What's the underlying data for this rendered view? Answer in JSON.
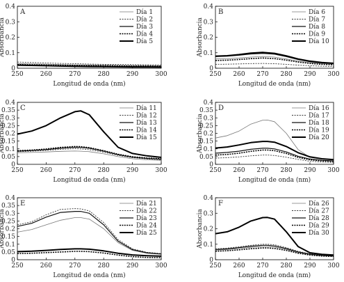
{
  "chart_data": [
    {
      "type": "line",
      "panel_label": "A",
      "xlabel": "Longitud de onda (nm)",
      "ylabel": "Absorbancia",
      "xlim": [
        250,
        300
      ],
      "ylim": [
        0,
        0.4
      ],
      "xticks": [
        250,
        260,
        270,
        280,
        290,
        300
      ],
      "yticks": [
        0,
        0.1,
        0.2,
        0.3,
        0.4
      ],
      "legend_position": "top-right",
      "grid": false,
      "x": [
        250,
        255,
        260,
        265,
        270,
        275,
        280,
        285,
        290,
        295,
        300
      ],
      "series": [
        {
          "name": "Día 1",
          "style": "thin",
          "values": [
            0.03,
            0.028,
            0.026,
            0.024,
            0.022,
            0.021,
            0.02,
            0.019,
            0.018,
            0.017,
            0.016
          ]
        },
        {
          "name": "Día 2",
          "style": "dotted",
          "values": [
            0.04,
            0.037,
            0.034,
            0.031,
            0.029,
            0.027,
            0.025,
            0.024,
            0.023,
            0.022,
            0.021
          ]
        },
        {
          "name": "Día 3",
          "style": "medium",
          "values": [
            0.018,
            0.017,
            0.016,
            0.015,
            0.014,
            0.013,
            0.012,
            0.011,
            0.011,
            0.01,
            0.01
          ]
        },
        {
          "name": "Día 4",
          "style": "dotted-thick",
          "values": [
            0.024,
            0.022,
            0.02,
            0.019,
            0.018,
            0.017,
            0.016,
            0.015,
            0.014,
            0.014,
            0.013
          ]
        },
        {
          "name": "Día 5",
          "style": "thick",
          "values": [
            0.02,
            0.018,
            0.016,
            0.014,
            0.012,
            0.011,
            0.01,
            0.009,
            0.008,
            0.008,
            0.007
          ]
        }
      ]
    },
    {
      "type": "line",
      "panel_label": "B",
      "xlabel": "Longitud de onda (nm)",
      "ylabel": "Absorbancia",
      "xlim": [
        250,
        300
      ],
      "ylim": [
        0,
        0.4
      ],
      "xticks": [
        250,
        260,
        270,
        280,
        290,
        300
      ],
      "yticks": [
        0,
        0.1,
        0.2,
        0.3,
        0.4
      ],
      "legend_position": "top-right",
      "grid": false,
      "x": [
        250,
        255,
        260,
        265,
        270,
        275,
        280,
        285,
        290,
        295,
        300
      ],
      "series": [
        {
          "name": "Día 6",
          "style": "thin",
          "values": [
            0.06,
            0.062,
            0.066,
            0.072,
            0.076,
            0.072,
            0.06,
            0.046,
            0.036,
            0.03,
            0.026
          ]
        },
        {
          "name": "Día 7",
          "style": "dotted",
          "values": [
            0.025,
            0.026,
            0.028,
            0.03,
            0.031,
            0.029,
            0.025,
            0.02,
            0.016,
            0.013,
            0.011
          ]
        },
        {
          "name": "Día 8",
          "style": "medium",
          "values": [
            0.075,
            0.078,
            0.084,
            0.092,
            0.096,
            0.091,
            0.075,
            0.056,
            0.042,
            0.034,
            0.03
          ]
        },
        {
          "name": "Día 9",
          "style": "dotted-thick",
          "values": [
            0.05,
            0.052,
            0.056,
            0.062,
            0.066,
            0.062,
            0.052,
            0.04,
            0.031,
            0.025,
            0.022
          ]
        },
        {
          "name": "Día 10",
          "style": "thick",
          "values": [
            0.078,
            0.081,
            0.088,
            0.098,
            0.102,
            0.096,
            0.08,
            0.06,
            0.046,
            0.037,
            0.032
          ]
        }
      ]
    },
    {
      "type": "line",
      "panel_label": "C",
      "xlabel": "Longitud de onda (nm)",
      "ylabel": "Absorbancia",
      "xlim": [
        250,
        300
      ],
      "ylim": [
        0,
        0.4
      ],
      "xticks": [
        250,
        260,
        270,
        280,
        290,
        300
      ],
      "yticks": [
        0,
        0.05,
        0.1,
        0.15,
        0.2,
        0.25,
        0.3,
        0.35,
        0.4
      ],
      "legend_position": "top-right",
      "grid": false,
      "x": [
        250,
        255,
        260,
        265,
        270,
        272,
        275,
        280,
        285,
        290,
        295,
        300
      ],
      "series": [
        {
          "name": "Día 11",
          "style": "thin",
          "values": [
            0.075,
            0.077,
            0.08,
            0.084,
            0.086,
            0.085,
            0.082,
            0.068,
            0.05,
            0.036,
            0.029,
            0.025
          ]
        },
        {
          "name": "Día 12",
          "style": "dotted",
          "values": [
            0.082,
            0.085,
            0.09,
            0.097,
            0.101,
            0.1,
            0.095,
            0.078,
            0.058,
            0.043,
            0.035,
            0.03
          ]
        },
        {
          "name": "Día 13",
          "style": "medium",
          "values": [
            0.085,
            0.089,
            0.095,
            0.104,
            0.11,
            0.109,
            0.104,
            0.085,
            0.062,
            0.046,
            0.038,
            0.033
          ]
        },
        {
          "name": "Día 14",
          "style": "dotted-thick",
          "values": [
            0.088,
            0.092,
            0.099,
            0.109,
            0.115,
            0.114,
            0.108,
            0.088,
            0.065,
            0.049,
            0.041,
            0.036
          ]
        },
        {
          "name": "Día 15",
          "style": "thick",
          "values": [
            0.195,
            0.215,
            0.25,
            0.3,
            0.34,
            0.345,
            0.32,
            0.21,
            0.11,
            0.07,
            0.055,
            0.045
          ]
        }
      ]
    },
    {
      "type": "line",
      "panel_label": "D",
      "xlabel": "Longitud de onda (nm)",
      "ylabel": "Absorbancia",
      "xlim": [
        250,
        300
      ],
      "ylim": [
        0,
        0.4
      ],
      "xticks": [
        250,
        260,
        270,
        280,
        290,
        300
      ],
      "yticks": [
        0,
        0.05,
        0.1,
        0.15,
        0.2,
        0.25,
        0.3,
        0.35,
        0.4
      ],
      "legend_position": "top-right",
      "grid": false,
      "x": [
        250,
        255,
        260,
        265,
        270,
        272,
        275,
        280,
        285,
        290,
        295,
        300
      ],
      "series": [
        {
          "name": "Día 16",
          "style": "thin",
          "values": [
            0.17,
            0.185,
            0.215,
            0.26,
            0.285,
            0.286,
            0.275,
            0.2,
            0.095,
            0.045,
            0.035,
            0.03
          ]
        },
        {
          "name": "Día 17",
          "style": "dotted",
          "values": [
            0.04,
            0.043,
            0.048,
            0.055,
            0.06,
            0.06,
            0.057,
            0.046,
            0.032,
            0.02,
            0.015,
            0.012
          ]
        },
        {
          "name": "Día 18",
          "style": "medium",
          "values": [
            0.072,
            0.077,
            0.085,
            0.097,
            0.104,
            0.104,
            0.1,
            0.08,
            0.052,
            0.034,
            0.026,
            0.022
          ]
        },
        {
          "name": "Día 19",
          "style": "dotted-thick",
          "values": [
            0.06,
            0.064,
            0.072,
            0.084,
            0.092,
            0.092,
            0.088,
            0.07,
            0.045,
            0.029,
            0.022,
            0.019
          ]
        },
        {
          "name": "Día 20",
          "style": "thick",
          "values": [
            0.105,
            0.112,
            0.125,
            0.14,
            0.148,
            0.148,
            0.143,
            0.115,
            0.075,
            0.048,
            0.036,
            0.03
          ]
        }
      ]
    },
    {
      "type": "line",
      "panel_label": "E",
      "xlabel": "Longitud de onda (nm)",
      "ylabel": "Absorbancia",
      "xlim": [
        250,
        300
      ],
      "ylim": [
        0,
        0.4
      ],
      "xticks": [
        250,
        260,
        270,
        280,
        290,
        300
      ],
      "yticks": [
        0,
        0.05,
        0.1,
        0.15,
        0.2,
        0.25,
        0.3,
        0.35,
        0.4
      ],
      "legend_position": "top-right",
      "grid": false,
      "x": [
        250,
        255,
        260,
        265,
        270,
        272,
        275,
        280,
        285,
        290,
        295,
        300
      ],
      "series": [
        {
          "name": "Día 21",
          "style": "thin",
          "values": [
            0.178,
            0.195,
            0.225,
            0.255,
            0.272,
            0.272,
            0.262,
            0.2,
            0.11,
            0.06,
            0.042,
            0.035
          ]
        },
        {
          "name": "Día 22",
          "style": "dotted",
          "values": [
            0.225,
            0.245,
            0.29,
            0.325,
            0.33,
            0.328,
            0.315,
            0.24,
            0.13,
            0.07,
            0.048,
            0.04
          ]
        },
        {
          "name": "Día 23",
          "style": "medium",
          "values": [
            0.215,
            0.235,
            0.275,
            0.305,
            0.312,
            0.312,
            0.3,
            0.225,
            0.12,
            0.065,
            0.045,
            0.037
          ]
        },
        {
          "name": "Día 24",
          "style": "dotted-thick",
          "values": [
            0.04,
            0.042,
            0.046,
            0.05,
            0.054,
            0.054,
            0.052,
            0.043,
            0.03,
            0.02,
            0.015,
            0.013
          ]
        },
        {
          "name": "Día 25",
          "style": "thick",
          "values": [
            0.052,
            0.055,
            0.06,
            0.066,
            0.07,
            0.07,
            0.068,
            0.057,
            0.042,
            0.031,
            0.026,
            0.023
          ]
        }
      ]
    },
    {
      "type": "line",
      "panel_label": "F",
      "xlabel": "Longitud de onda (nm)",
      "ylabel": "Absorbancia",
      "xlim": [
        250,
        300
      ],
      "ylim": [
        0,
        0.4
      ],
      "xticks": [
        250,
        260,
        270,
        280,
        290,
        300
      ],
      "yticks": [
        0,
        0.1,
        0.2,
        0.3,
        0.4
      ],
      "legend_position": "top-right",
      "grid": false,
      "x": [
        250,
        255,
        260,
        265,
        270,
        272,
        275,
        280,
        285,
        290,
        295,
        300
      ],
      "series": [
        {
          "name": "Día 26",
          "style": "thin",
          "values": [
            0.062,
            0.066,
            0.072,
            0.08,
            0.085,
            0.085,
            0.082,
            0.067,
            0.047,
            0.034,
            0.027,
            0.023
          ]
        },
        {
          "name": "Día 27",
          "style": "dotted",
          "values": [
            0.07,
            0.075,
            0.083,
            0.093,
            0.1,
            0.1,
            0.096,
            0.078,
            0.054,
            0.038,
            0.03,
            0.026
          ]
        },
        {
          "name": "Día 28",
          "style": "medium",
          "values": [
            0.066,
            0.07,
            0.078,
            0.087,
            0.093,
            0.093,
            0.089,
            0.072,
            0.05,
            0.036,
            0.028,
            0.024
          ]
        },
        {
          "name": "Día 29",
          "style": "dotted-thick",
          "values": [
            0.055,
            0.058,
            0.064,
            0.071,
            0.076,
            0.076,
            0.073,
            0.06,
            0.042,
            0.03,
            0.024,
            0.021
          ]
        },
        {
          "name": "Día 30",
          "style": "thick",
          "values": [
            0.168,
            0.18,
            0.21,
            0.25,
            0.272,
            0.273,
            0.262,
            0.18,
            0.085,
            0.045,
            0.035,
            0.03
          ]
        }
      ]
    }
  ]
}
